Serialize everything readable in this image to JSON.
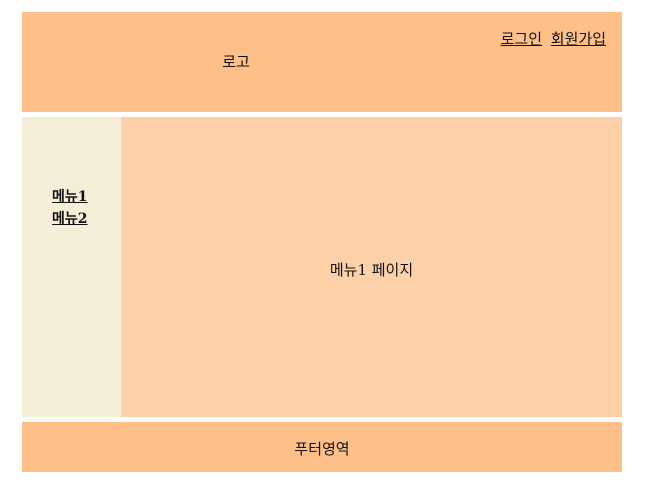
{
  "header": {
    "logo_text": "로고",
    "login_link": "로그인",
    "signup_link": "회원가입"
  },
  "sidebar": {
    "items": [
      {
        "label": "메뉴1"
      },
      {
        "label": "메뉴2"
      }
    ]
  },
  "main": {
    "title": "메뉴1 페이지"
  },
  "footer": {
    "text": "푸터영역"
  },
  "colors": {
    "header_bg": "#FFBF88",
    "sidebar_bg": "#F4EED8",
    "main_bg": "#FDD0A8",
    "footer_bg": "#FFBF88"
  }
}
